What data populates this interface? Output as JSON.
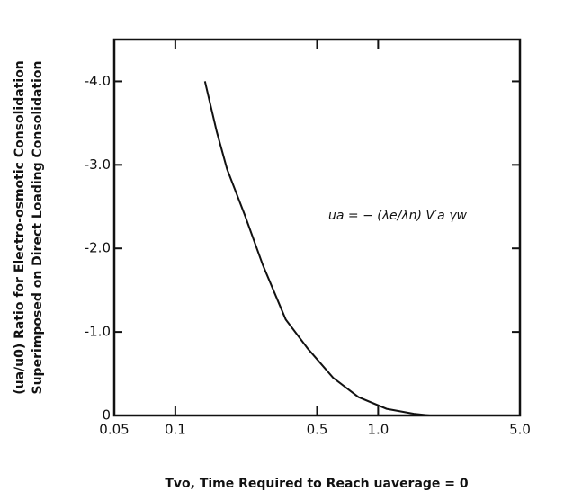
{
  "chart_data": {
    "type": "line",
    "y_label_lines": [
      "(ua/u0) Ratio for Electro-osmotic Consolidation",
      "Superimposed on Direct Loading Consolidation"
    ],
    "x_label": "Tvo, Time Required to Reach uaverage = 0",
    "annotation": "ua = − (λe/λn) V′a γw",
    "x_scale": "log",
    "xlim": [
      0.05,
      5
    ],
    "xticks": [
      0.05,
      0.1,
      0.5,
      {
        "value": 1,
        "label": "1.0"
      },
      {
        "value": 5,
        "label": "5.0"
      }
    ],
    "ylim": [
      0,
      -4.5
    ],
    "yticks": [
      0,
      {
        "value": -1,
        "label": "-1.0"
      },
      {
        "value": -2,
        "label": "-2.0"
      },
      {
        "value": -3,
        "label": "-3.0"
      },
      {
        "value": -4,
        "label": "-4.0"
      }
    ],
    "color": "#111111",
    "x": [
      0.14,
      0.16,
      0.18,
      0.22,
      0.27,
      0.35,
      0.45,
      0.6,
      0.8,
      1.1,
      1.5,
      1.8
    ],
    "values": [
      -4.0,
      -3.4,
      -2.95,
      -2.4,
      -1.8,
      -1.15,
      -0.8,
      -0.45,
      -0.22,
      -0.08,
      -0.02,
      0
    ]
  }
}
